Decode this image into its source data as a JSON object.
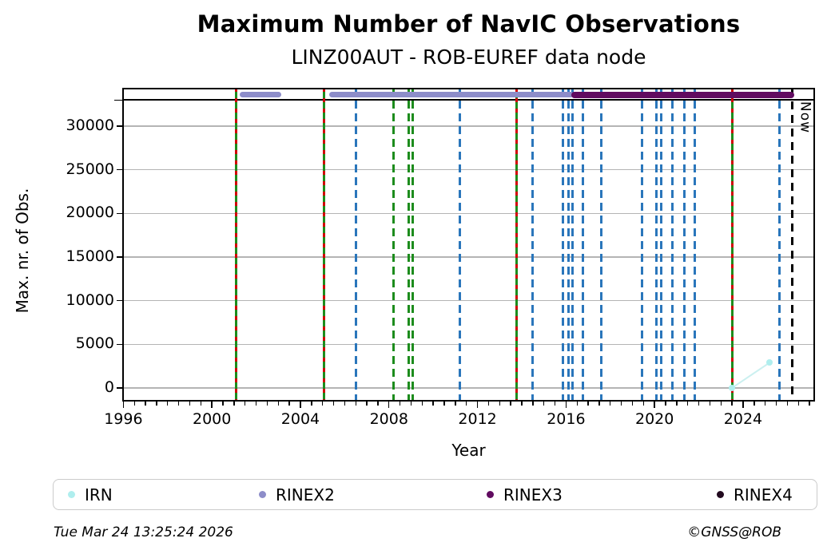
{
  "chart_data": {
    "type": "line",
    "title": "Maximum Number of NavIC Observations",
    "subtitle": "LINZ00AUT - ROB-EUREF data node",
    "xlabel": "Year",
    "ylabel": "Max. nr. of Obs.",
    "x_range": [
      1995.95,
      2027.25
    ],
    "y_ticks": [
      0,
      5000,
      10000,
      15000,
      20000,
      25000,
      30000
    ],
    "x_major_ticks": [
      1996,
      2000,
      2004,
      2008,
      2012,
      2016,
      2020,
      2024
    ],
    "x_minor_tick_step": 0.5,
    "grid": true,
    "legend_position": "bottom",
    "reference_line_value": 33000,
    "now_line": {
      "year": 2026.23,
      "label": "Now"
    },
    "series": [
      {
        "name": "IRN",
        "color": "#afeeee",
        "style": "points",
        "points": [
          {
            "year": 2023.5,
            "value": 0
          },
          {
            "year": 2025.2,
            "value": 2900
          }
        ]
      },
      {
        "name": "RINEX2",
        "color": "#8d8dc9",
        "style": "band",
        "value": 33600,
        "segments": [
          [
            2001.27,
            2003.15
          ],
          [
            2005.3,
            2016.35
          ]
        ]
      },
      {
        "name": "RINEX3",
        "color": "#610b60",
        "style": "band",
        "value": 33600,
        "segments": [
          [
            2016.25,
            2026.3
          ]
        ]
      },
      {
        "name": "RINEX4",
        "color": "#220a1f",
        "style": "band",
        "value": null,
        "segments": []
      }
    ],
    "event_lines": [
      {
        "year": 2001.08,
        "style": "red-green"
      },
      {
        "year": 2005.05,
        "style": "red-green"
      },
      {
        "year": 2006.5,
        "style": "blue"
      },
      {
        "year": 2008.2,
        "style": "green"
      },
      {
        "year": 2008.9,
        "style": "green"
      },
      {
        "year": 2009.08,
        "style": "green"
      },
      {
        "year": 2011.2,
        "style": "blue"
      },
      {
        "year": 2013.75,
        "style": "red-green"
      },
      {
        "year": 2014.5,
        "style": "blue"
      },
      {
        "year": 2015.85,
        "style": "blue"
      },
      {
        "year": 2016.1,
        "style": "blue"
      },
      {
        "year": 2016.3,
        "style": "blue"
      },
      {
        "year": 2016.75,
        "style": "blue"
      },
      {
        "year": 2017.6,
        "style": "blue"
      },
      {
        "year": 2019.45,
        "style": "blue"
      },
      {
        "year": 2020.1,
        "style": "blue"
      },
      {
        "year": 2020.3,
        "style": "blue"
      },
      {
        "year": 2020.8,
        "style": "blue"
      },
      {
        "year": 2021.35,
        "style": "blue"
      },
      {
        "year": 2021.8,
        "style": "blue"
      },
      {
        "year": 2023.5,
        "style": "red-green"
      },
      {
        "year": 2025.65,
        "style": "blue"
      }
    ],
    "legend": [
      {
        "label": "IRN",
        "color": "#afeeee"
      },
      {
        "label": "RINEX2",
        "color": "#8d8dc9"
      },
      {
        "label": "RINEX3",
        "color": "#610b60"
      },
      {
        "label": "RINEX4",
        "color": "#220a1f"
      }
    ],
    "line_colors": {
      "blue": "#2a76bb",
      "green": "#1d8c1d",
      "red": "#d00505",
      "now": "#000000",
      "grid": "#b4b4b4"
    }
  },
  "footer": {
    "timestamp": "Tue Mar 24 13:25:24 2026",
    "copyright": "©GNSS@ROB"
  }
}
